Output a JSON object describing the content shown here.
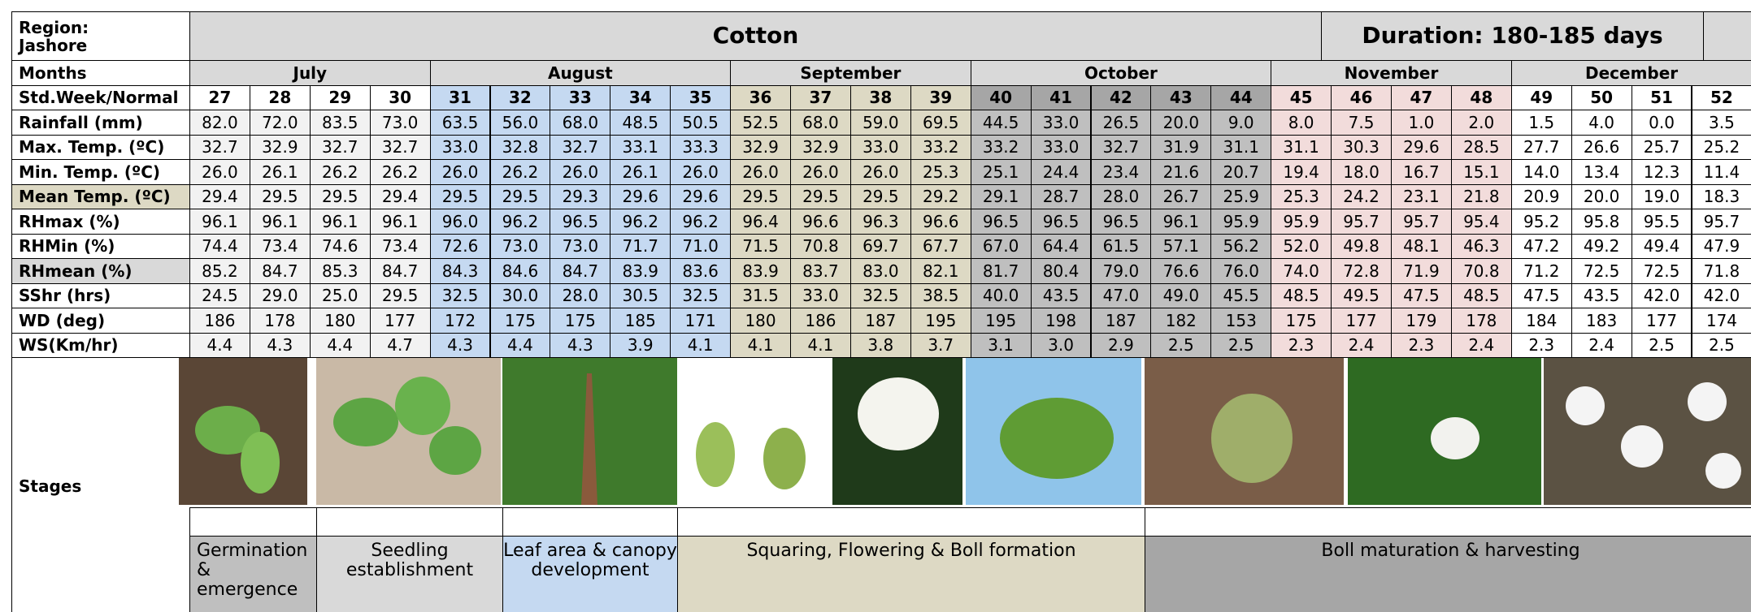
{
  "header": {
    "region": "Region:\nJashore",
    "crop": "Cotton",
    "duration": "Duration: 180-185 days"
  },
  "months_label": "Months",
  "week_label": "Std.Week/Normal",
  "months": [
    {
      "name": "July",
      "weeks": [
        27,
        28,
        29,
        30
      ]
    },
    {
      "name": "August",
      "weeks": [
        31,
        32,
        33,
        34,
        35
      ]
    },
    {
      "name": "September",
      "weeks": [
        36,
        37,
        38,
        39
      ]
    },
    {
      "name": "October",
      "weeks": [
        40,
        41,
        42,
        43,
        44
      ]
    },
    {
      "name": "November",
      "weeks": [
        45,
        46,
        47,
        48
      ]
    },
    {
      "name": "December",
      "weeks": [
        49,
        50,
        51,
        52
      ]
    }
  ],
  "rows": [
    {
      "label": "Rainfall (mm)",
      "values": [
        "82.0",
        "72.0",
        "83.5",
        "73.0",
        "63.5",
        "56.0",
        "68.0",
        "48.5",
        "50.5",
        "52.5",
        "68.0",
        "59.0",
        "69.5",
        "44.5",
        "33.0",
        "26.5",
        "20.0",
        "9.0",
        "8.0",
        "7.5",
        "1.0",
        "2.0",
        "1.5",
        "4.0",
        "0.0",
        "3.5"
      ]
    },
    {
      "label": "Max. Temp. (ºC)",
      "values": [
        "32.7",
        "32.9",
        "32.7",
        "32.7",
        "33.0",
        "32.8",
        "32.7",
        "33.1",
        "33.3",
        "32.9",
        "32.9",
        "33.0",
        "33.2",
        "33.2",
        "33.0",
        "32.7",
        "31.9",
        "31.1",
        "31.1",
        "30.3",
        "29.6",
        "28.5",
        "27.7",
        "26.6",
        "25.7",
        "25.2"
      ]
    },
    {
      "label": "Min. Temp. (ºC)",
      "values": [
        "26.0",
        "26.1",
        "26.2",
        "26.2",
        "26.0",
        "26.2",
        "26.0",
        "26.1",
        "26.0",
        "26.0",
        "26.0",
        "26.0",
        "25.3",
        "25.1",
        "24.4",
        "23.4",
        "21.6",
        "20.7",
        "19.4",
        "18.0",
        "16.7",
        "15.1",
        "14.0",
        "13.4",
        "12.3",
        "11.4"
      ]
    },
    {
      "label": "Mean Temp. (ºC)",
      "values": [
        "29.4",
        "29.5",
        "29.5",
        "29.4",
        "29.5",
        "29.5",
        "29.3",
        "29.6",
        "29.6",
        "29.5",
        "29.5",
        "29.5",
        "29.2",
        "29.1",
        "28.7",
        "28.0",
        "26.7",
        "25.9",
        "25.3",
        "24.2",
        "23.1",
        "21.8",
        "20.9",
        "20.0",
        "19.0",
        "18.3"
      ]
    },
    {
      "label": "RHmax (%)",
      "values": [
        "96.1",
        "96.1",
        "96.1",
        "96.1",
        "96.0",
        "96.2",
        "96.5",
        "96.2",
        "96.2",
        "96.4",
        "96.6",
        "96.3",
        "96.6",
        "96.5",
        "96.5",
        "96.5",
        "96.1",
        "95.9",
        "95.9",
        "95.7",
        "95.7",
        "95.4",
        "95.2",
        "95.8",
        "95.5",
        "95.7"
      ]
    },
    {
      "label": "RHMin (%)",
      "values": [
        "74.4",
        "73.4",
        "74.6",
        "73.4",
        "72.6",
        "73.0",
        "73.0",
        "71.7",
        "71.0",
        "71.5",
        "70.8",
        "69.7",
        "67.7",
        "67.0",
        "64.4",
        "61.5",
        "57.1",
        "56.2",
        "52.0",
        "49.8",
        "48.1",
        "46.3",
        "47.2",
        "49.2",
        "49.4",
        "47.9"
      ]
    },
    {
      "label": "RHmean (%)",
      "values": [
        "85.2",
        "84.7",
        "85.3",
        "84.7",
        "84.3",
        "84.6",
        "84.7",
        "83.9",
        "83.6",
        "83.9",
        "83.7",
        "83.0",
        "82.1",
        "81.7",
        "80.4",
        "79.0",
        "76.6",
        "76.0",
        "74.0",
        "72.8",
        "71.9",
        "70.8",
        "71.2",
        "72.5",
        "72.5",
        "71.8"
      ]
    },
    {
      "label": "SShr (hrs)",
      "values": [
        "24.5",
        "29.0",
        "25.0",
        "29.5",
        "32.5",
        "30.0",
        "28.0",
        "30.5",
        "32.5",
        "31.5",
        "33.0",
        "32.5",
        "38.5",
        "40.0",
        "43.5",
        "47.0",
        "49.0",
        "45.5",
        "48.5",
        "49.5",
        "47.5",
        "48.5",
        "47.5",
        "43.5",
        "42.0",
        "42.0"
      ]
    },
    {
      "label": "WD (deg)",
      "values": [
        "186",
        "178",
        "180",
        "177",
        "172",
        "175",
        "175",
        "185",
        "171",
        "180",
        "186",
        "187",
        "195",
        "195",
        "198",
        "187",
        "182",
        "153",
        "175",
        "177",
        "179",
        "178",
        "184",
        "183",
        "177",
        "174"
      ]
    },
    {
      "label": "WS(Km/hr)",
      "values": [
        "4.4",
        "4.3",
        "4.4",
        "4.7",
        "4.3",
        "4.4",
        "4.3",
        "3.9",
        "4.1",
        "4.1",
        "4.1",
        "3.8",
        "3.7",
        "3.1",
        "3.0",
        "2.9",
        "2.5",
        "2.5",
        "2.3",
        "2.4",
        "2.3",
        "2.4",
        "2.3",
        "2.4",
        "2.5",
        "2.5"
      ]
    }
  ],
  "stages_label": "Stages",
  "stages": [
    "Germination & emergence",
    "Seedling establishment",
    "Leaf area & canopy development",
    "Squaring, Flowering & Boll formation",
    "Boll maturation & harvesting"
  ]
}
